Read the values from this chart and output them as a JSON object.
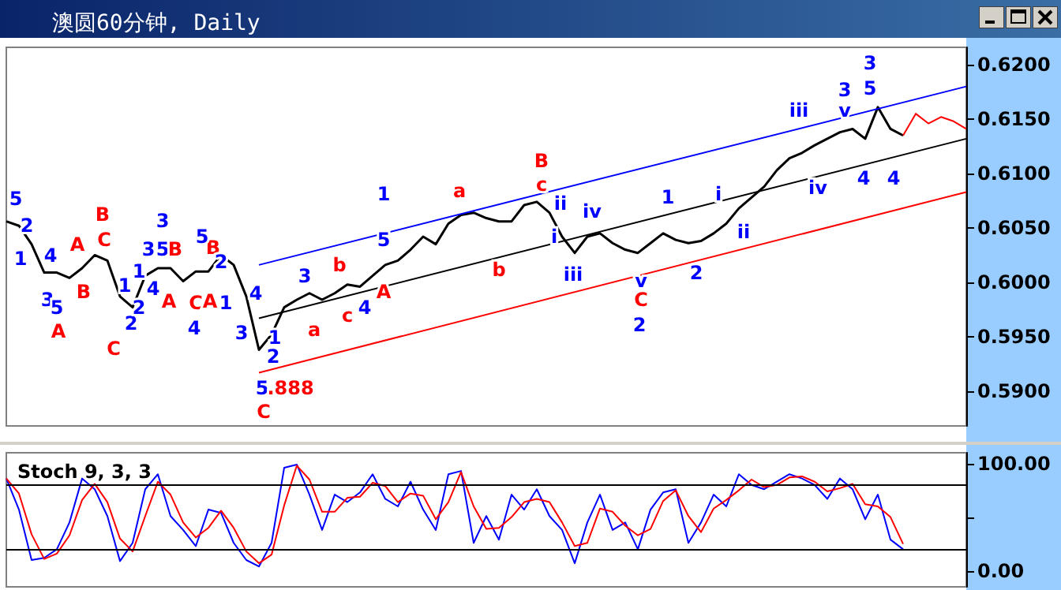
{
  "chart_data": [
    {
      "type": "line",
      "title": "澳圆60分钟, Daily",
      "tick_labels": "y",
      "categories": [
        null,
        null,
        null,
        null,
        null,
        null,
        null,
        null,
        null,
        null,
        null,
        null,
        null,
        null,
        null,
        null,
        null,
        null,
        null,
        null,
        null,
        null,
        null,
        null,
        null,
        null,
        null,
        null,
        null,
        null,
        null,
        null,
        null,
        null,
        null,
        null,
        null,
        null,
        null,
        null,
        null,
        null,
        null,
        null,
        null,
        null,
        null,
        null,
        null,
        null,
        null,
        null,
        null,
        null,
        null,
        null,
        null,
        null,
        null,
        null,
        null,
        null,
        null,
        null,
        null,
        null,
        null,
        null,
        null,
        null,
        null,
        null,
        null,
        null,
        null,
        null,
        null
      ],
      "ylim": [
        0.5868,
        0.6216
      ],
      "yticks": [
        {
          "value": 0.59,
          "label": "0.5900"
        },
        {
          "value": 0.595,
          "label": "0.5950"
        },
        {
          "value": 0.6,
          "label": "0.6000"
        },
        {
          "value": 0.605,
          "label": "0.6050"
        },
        {
          "value": 0.61,
          "label": "0.6100"
        },
        {
          "value": 0.615,
          "label": "0.6150"
        },
        {
          "value": 0.62,
          "label": "0.6200"
        }
      ],
      "series": [
        {
          "color": "#000000",
          "values": [
            0.6056,
            0.6052,
            0.6035,
            0.6009,
            0.6009,
            0.6004,
            0.6013,
            0.6025,
            0.602,
            0.5987,
            0.5977,
            0.6006,
            0.6013,
            0.6013,
            0.6001,
            0.601,
            0.601,
            0.6025,
            0.6016,
            0.5987,
            0.5938,
            0.5952,
            0.5977,
            0.5984,
            0.599,
            0.5984,
            0.599,
            0.5998,
            0.5996,
            0.6006,
            0.6016,
            0.602,
            0.603,
            0.6042,
            0.6035,
            0.6054,
            0.6062,
            0.6064,
            0.6059,
            0.6056,
            0.6056,
            0.6071,
            0.6074,
            0.6064,
            0.6042,
            0.6027,
            0.6042,
            0.6045,
            0.6036,
            0.603,
            0.6027,
            0.6036,
            0.6045,
            0.6039,
            0.6036,
            0.6038,
            0.6045,
            0.6054,
            0.6068,
            0.6078,
            0.6088,
            0.6103,
            0.6114,
            0.6119,
            0.6126,
            0.6132,
            0.6138,
            0.6141,
            0.6132,
            0.6161,
            0.6141,
            0.6135,
            null,
            null,
            null,
            null,
            null
          ]
        },
        {
          "color": "#0000ff",
          "values": [
            null,
            null,
            null,
            null,
            null,
            null,
            null,
            null,
            null,
            null,
            null,
            null,
            null,
            null,
            null,
            null,
            null,
            null,
            null,
            null,
            0.6016,
            null,
            null,
            null,
            null,
            null,
            null,
            null,
            null,
            null,
            null,
            null,
            null,
            null,
            null,
            null,
            null,
            null,
            null,
            null,
            null,
            null,
            null,
            null,
            null,
            null,
            null,
            null,
            null,
            null,
            null,
            null,
            null,
            null,
            null,
            null,
            null,
            null,
            null,
            null,
            null,
            null,
            null,
            null,
            null,
            null,
            null,
            null,
            null,
            null,
            null,
            null,
            null,
            null,
            null,
            null,
            0.618
          ]
        },
        {
          "color": "#000000",
          "values": [
            null,
            null,
            null,
            null,
            null,
            null,
            null,
            null,
            null,
            null,
            null,
            null,
            null,
            null,
            null,
            null,
            null,
            null,
            null,
            null,
            0.5967,
            null,
            null,
            null,
            null,
            null,
            null,
            null,
            null,
            null,
            null,
            null,
            null,
            null,
            null,
            null,
            null,
            null,
            null,
            null,
            null,
            null,
            null,
            null,
            null,
            null,
            null,
            null,
            null,
            null,
            null,
            null,
            null,
            null,
            null,
            null,
            null,
            null,
            null,
            null,
            null,
            null,
            null,
            null,
            null,
            null,
            null,
            null,
            null,
            null,
            null,
            null,
            null,
            null,
            null,
            null,
            0.6132
          ]
        },
        {
          "color": "#ff0000",
          "values": [
            null,
            null,
            null,
            null,
            null,
            null,
            null,
            null,
            null,
            null,
            null,
            null,
            null,
            null,
            null,
            null,
            null,
            null,
            null,
            null,
            0.5917,
            null,
            null,
            null,
            null,
            null,
            null,
            null,
            null,
            null,
            null,
            null,
            null,
            null,
            null,
            null,
            null,
            null,
            null,
            null,
            null,
            null,
            null,
            null,
            null,
            null,
            null,
            null,
            null,
            null,
            null,
            null,
            null,
            null,
            null,
            null,
            null,
            null,
            null,
            null,
            null,
            null,
            null,
            null,
            null,
            null,
            null,
            null,
            null,
            null,
            null,
            null,
            null,
            null,
            null,
            null,
            0.6083
          ]
        },
        {
          "color": "#ff0000",
          "values": [
            null,
            null,
            null,
            null,
            null,
            null,
            null,
            null,
            null,
            null,
            null,
            null,
            null,
            null,
            null,
            null,
            null,
            null,
            null,
            null,
            null,
            null,
            null,
            null,
            null,
            null,
            null,
            null,
            null,
            null,
            null,
            null,
            null,
            null,
            null,
            null,
            null,
            null,
            null,
            null,
            null,
            null,
            null,
            null,
            null,
            null,
            null,
            null,
            null,
            null,
            null,
            null,
            null,
            null,
            null,
            null,
            null,
            null,
            null,
            null,
            null,
            null,
            null,
            null,
            null,
            null,
            null,
            null,
            null,
            null,
            null,
            0.6135,
            0.6155,
            0.6146,
            0.6152,
            0.6148,
            0.6141
          ]
        }
      ],
      "annotations": [
        "5",
        "2",
        "1",
        "4",
        "3",
        "5",
        "A",
        "A",
        "B",
        "B",
        "C",
        "1",
        "2",
        "C",
        "1",
        "2",
        "3",
        "5",
        "3",
        "4",
        "B",
        "A",
        "C",
        "A",
        "B",
        "5",
        "1",
        "4",
        "2",
        "4",
        "3",
        "1",
        "2",
        "5",
        ".888",
        "C",
        "1",
        "5",
        "3",
        "b",
        "a",
        "c",
        "4",
        "A",
        "a",
        "b",
        "B",
        "c",
        "ii",
        "i",
        "iv",
        "iii",
        "v",
        "C",
        "2",
        "1",
        "2",
        "i",
        "ii",
        "iii",
        "iv",
        "3",
        "v",
        "5",
        "3",
        "4",
        "4"
      ]
    },
    {
      "type": "line",
      "title": "Stoch 9, 3, 3",
      "tick_labels": "y",
      "categories": [
        null,
        null,
        null,
        null,
        null,
        null,
        null,
        null,
        null,
        null,
        null,
        null,
        null,
        null,
        null,
        null,
        null,
        null,
        null,
        null,
        null,
        null,
        null,
        null,
        null,
        null,
        null,
        null,
        null,
        null,
        null,
        null,
        null,
        null,
        null,
        null,
        null,
        null,
        null,
        null,
        null,
        null,
        null,
        null,
        null,
        null,
        null,
        null,
        null,
        null,
        null,
        null,
        null,
        null,
        null,
        null,
        null,
        null,
        null,
        null,
        null,
        null,
        null,
        null,
        null,
        null,
        null,
        null,
        null,
        null,
        null,
        null,
        null,
        null,
        null,
        null,
        null
      ],
      "ylim": [
        -15,
        110
      ],
      "yticks": [
        {
          "value": 0,
          "label": "0.00"
        },
        {
          "value": 50,
          "label": null
        },
        {
          "value": 100,
          "label": "100.00"
        }
      ],
      "ref_lines": [
        {
          "axis": "y",
          "value": 80,
          "color": "#000000"
        },
        {
          "axis": "y",
          "value": 20,
          "color": "#000000"
        }
      ],
      "series": [
        {
          "color": "#0000ff",
          "values": [
            86,
            57,
            10,
            12,
            20,
            45,
            86,
            76,
            51,
            9,
            26,
            76,
            90,
            51,
            38,
            23,
            57,
            54,
            26,
            10,
            4,
            26,
            96,
            99,
            71,
            38,
            71,
            64,
            73,
            90,
            67,
            60,
            83,
            57,
            38,
            90,
            93,
            26,
            51,
            29,
            71,
            57,
            76,
            51,
            38,
            7,
            45,
            71,
            38,
            45,
            20,
            57,
            73,
            76,
            26,
            45,
            71,
            60,
            90,
            80,
            76,
            83,
            90,
            86,
            80,
            67,
            86,
            76,
            48,
            71,
            29,
            20,
            null,
            null,
            null,
            null,
            null
          ]
        },
        {
          "color": "#ff0000",
          "values": [
            86,
            72,
            34,
            11,
            16,
            33,
            66,
            81,
            64,
            30,
            18,
            51,
            83,
            71,
            45,
            31,
            40,
            56,
            40,
            18,
            7,
            15,
            61,
            98,
            85,
            55,
            55,
            68,
            69,
            82,
            79,
            64,
            72,
            70,
            48,
            64,
            92,
            60,
            39,
            40,
            50,
            64,
            67,
            64,
            45,
            23,
            26,
            58,
            55,
            42,
            33,
            39,
            65,
            75,
            51,
            36,
            58,
            66,
            75,
            85,
            78,
            80,
            87,
            88,
            83,
            74,
            77,
            81,
            62,
            60,
            50,
            25,
            null,
            null,
            null,
            null,
            null
          ]
        }
      ]
    }
  ]
}
